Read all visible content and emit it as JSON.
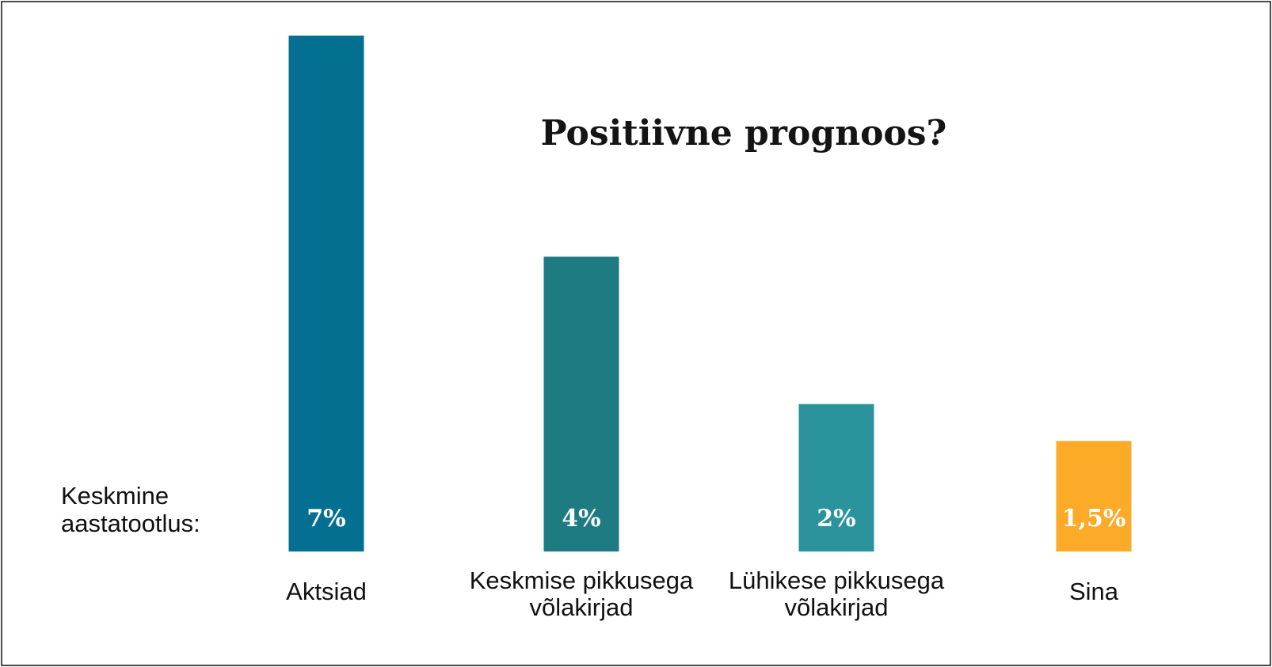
{
  "chart_data": {
    "type": "bar",
    "title": "Positiivne prognoos?",
    "row_label_lines": [
      "Keskmine",
      "aastatootlus:"
    ],
    "unit": "%",
    "categories": [
      [
        "Aktsiad"
      ],
      [
        "Keskmise pikkusega",
        "võlakirjad"
      ],
      [
        "Lühikese pikkusega",
        "võlakirjad"
      ],
      [
        "Sina"
      ]
    ],
    "values": [
      7,
      4,
      2,
      1.5
    ],
    "value_labels": [
      "7%",
      "4%",
      "2%",
      "1,5%"
    ],
    "colors": [
      "#036f91",
      "#1f7b82",
      "#2a939c",
      "#fcab28"
    ],
    "ylim": [
      0,
      7
    ],
    "grid": false,
    "legend": "none"
  }
}
